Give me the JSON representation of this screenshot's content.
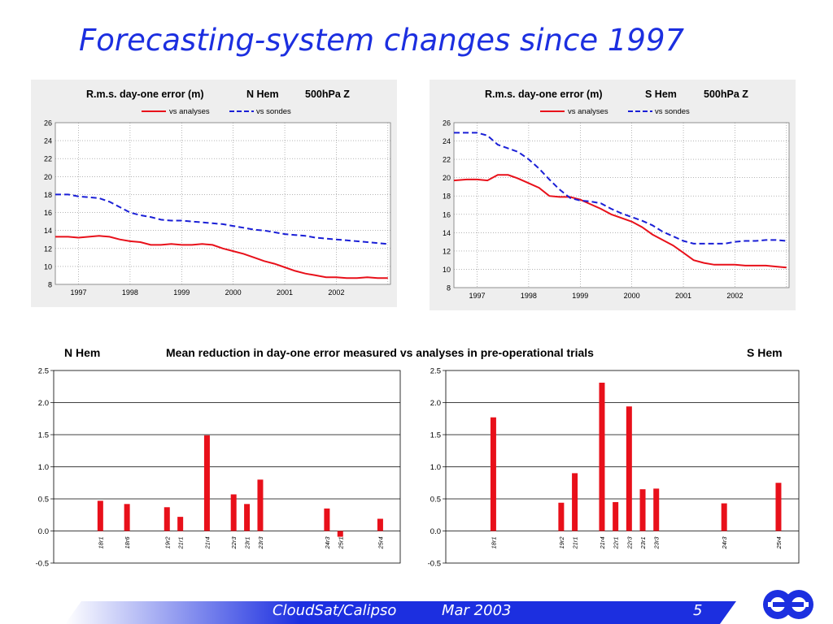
{
  "title": "Forecasting-system changes since 1997",
  "footer": {
    "event": "CloudSat/Calipso",
    "date": "Mar 2003",
    "page": "5"
  },
  "colors": {
    "title": "#1c2fe0",
    "analyses": "#e8101a",
    "sondes": "#1a1fd6",
    "bars": "#e8101a",
    "footer_band": "#1c2fe0"
  },
  "section_title": {
    "left": "N Hem",
    "center": "Mean reduction in day-one error measured vs analyses in pre-operational trials",
    "right": "S  Hem"
  },
  "chart_data": [
    {
      "type": "line",
      "title": "R.m.s. day-one error (m)",
      "hemisphere": "N Hem",
      "level": "500hPa Z",
      "ylim": [
        8,
        26
      ],
      "yticks": [
        8,
        10,
        12,
        14,
        16,
        18,
        20,
        22,
        24,
        26
      ],
      "x_categories": [
        "1997",
        "1998",
        "1999",
        "2000",
        "2001",
        "2002"
      ],
      "grid": true,
      "legend_position": "top",
      "series": [
        {
          "name": "vs analyses",
          "style": "solid",
          "color": "#e8101a",
          "x": [
            1996.55,
            1996.8,
            1997.0,
            1997.2,
            1997.4,
            1997.6,
            1997.8,
            1998.0,
            1998.2,
            1998.4,
            1998.6,
            1998.8,
            1999.0,
            1999.2,
            1999.4,
            1999.6,
            1999.8,
            2000.0,
            2000.2,
            2000.4,
            2000.6,
            2000.8,
            2001.0,
            2001.2,
            2001.4,
            2001.6,
            2001.8,
            2002.0,
            2002.2,
            2002.4,
            2002.6,
            2002.8,
            2003.0
          ],
          "y": [
            13.3,
            13.3,
            13.2,
            13.3,
            13.4,
            13.3,
            13.0,
            12.8,
            12.7,
            12.4,
            12.4,
            12.5,
            12.4,
            12.4,
            12.5,
            12.4,
            12.0,
            11.7,
            11.4,
            11.0,
            10.6,
            10.3,
            9.9,
            9.5,
            9.2,
            9.0,
            8.8,
            8.8,
            8.7,
            8.7,
            8.8,
            8.7,
            8.7
          ]
        },
        {
          "name": "vs sondes",
          "style": "dashed",
          "color": "#1a1fd6",
          "x": [
            1996.55,
            1996.8,
            1997.0,
            1997.2,
            1997.4,
            1997.6,
            1997.8,
            1998.0,
            1998.2,
            1998.4,
            1998.6,
            1998.8,
            1999.0,
            1999.2,
            1999.4,
            1999.6,
            1999.8,
            2000.0,
            2000.2,
            2000.4,
            2000.6,
            2000.8,
            2001.0,
            2001.2,
            2001.4,
            2001.6,
            2001.8,
            2002.0,
            2002.2,
            2002.4,
            2002.6,
            2002.8,
            2003.0
          ],
          "y": [
            18.0,
            18.0,
            17.8,
            17.7,
            17.6,
            17.2,
            16.6,
            16.0,
            15.7,
            15.5,
            15.2,
            15.1,
            15.1,
            15.0,
            14.9,
            14.8,
            14.7,
            14.5,
            14.3,
            14.1,
            14.0,
            13.8,
            13.6,
            13.5,
            13.4,
            13.2,
            13.1,
            13.0,
            12.9,
            12.8,
            12.7,
            12.6,
            12.5
          ]
        }
      ]
    },
    {
      "type": "line",
      "title": "R.m.s. day-one error (m)",
      "hemisphere": "S Hem",
      "level": "500hPa Z",
      "ylim": [
        8,
        26
      ],
      "yticks": [
        8,
        10,
        12,
        14,
        16,
        18,
        20,
        22,
        24,
        26
      ],
      "x_categories": [
        "1997",
        "1998",
        "1999",
        "2000",
        "2001",
        "2002"
      ],
      "grid": true,
      "legend_position": "top",
      "series": [
        {
          "name": "vs analyses",
          "style": "solid",
          "color": "#e8101a",
          "x": [
            1996.55,
            1996.8,
            1997.0,
            1997.2,
            1997.4,
            1997.6,
            1997.8,
            1998.0,
            1998.2,
            1998.4,
            1998.6,
            1998.8,
            1999.0,
            1999.2,
            1999.4,
            1999.6,
            1999.8,
            2000.0,
            2000.2,
            2000.4,
            2000.6,
            2000.8,
            2001.0,
            2001.2,
            2001.4,
            2001.6,
            2001.8,
            2002.0,
            2002.2,
            2002.4,
            2002.6,
            2002.8,
            2003.0
          ],
          "y": [
            19.7,
            19.8,
            19.8,
            19.7,
            20.3,
            20.3,
            19.9,
            19.4,
            18.9,
            18.0,
            17.9,
            17.9,
            17.6,
            17.1,
            16.6,
            16.0,
            15.6,
            15.2,
            14.6,
            13.8,
            13.2,
            12.6,
            11.8,
            11.0,
            10.7,
            10.5,
            10.5,
            10.5,
            10.4,
            10.4,
            10.4,
            10.3,
            10.2
          ]
        },
        {
          "name": "vs sondes",
          "style": "dashed",
          "color": "#1a1fd6",
          "x": [
            1996.55,
            1996.8,
            1997.0,
            1997.2,
            1997.4,
            1997.6,
            1997.8,
            1998.0,
            1998.2,
            1998.4,
            1998.6,
            1998.8,
            1999.0,
            1999.2,
            1999.4,
            1999.6,
            1999.8,
            2000.0,
            2000.2,
            2000.4,
            2000.6,
            2000.8,
            2001.0,
            2001.2,
            2001.4,
            2001.6,
            2001.8,
            2002.0,
            2002.2,
            2002.4,
            2002.6,
            2002.8,
            2003.0
          ],
          "y": [
            24.9,
            24.9,
            24.9,
            24.6,
            23.6,
            23.2,
            22.8,
            22.0,
            21.0,
            19.8,
            18.7,
            17.8,
            17.5,
            17.4,
            17.2,
            16.6,
            16.1,
            15.7,
            15.3,
            14.8,
            14.1,
            13.6,
            13.1,
            12.8,
            12.8,
            12.8,
            12.8,
            13.0,
            13.1,
            13.1,
            13.2,
            13.2,
            13.1
          ]
        }
      ]
    },
    {
      "type": "bar",
      "hemisphere": "N Hem",
      "ylim": [
        -0.5,
        2.5
      ],
      "yticks": [
        "-0.5",
        "0.0",
        "0.5",
        "1.0",
        "1.5",
        "2.0",
        "2.5"
      ],
      "slots": 26,
      "categories": [
        "18r1",
        "18r6",
        "19r2",
        "21r1",
        "21r4",
        "22r3",
        "23r1",
        "23r3",
        "24r3",
        "25r1",
        "25r4"
      ],
      "category_slots": [
        3,
        5,
        8,
        9,
        11,
        13,
        14,
        15,
        20,
        21,
        24
      ],
      "values": [
        0.47,
        0.42,
        0.37,
        0.22,
        1.49,
        0.57,
        0.42,
        0.8,
        0.35,
        -0.09,
        0.19
      ],
      "grid": true
    },
    {
      "type": "bar",
      "hemisphere": "S Hem",
      "ylim": [
        -0.5,
        2.5
      ],
      "yticks": [
        "-0.5",
        "0.0",
        "0.5",
        "1.0",
        "1.5",
        "2.0",
        "2.5"
      ],
      "slots": 26,
      "categories": [
        "18r1",
        "19r2",
        "21r1",
        "21r4",
        "22r1",
        "22r3",
        "23r1",
        "23r3",
        "24r3",
        "25r4"
      ],
      "category_slots": [
        3,
        8,
        9,
        11,
        12,
        13,
        14,
        15,
        20,
        24
      ],
      "values": [
        1.77,
        0.44,
        0.9,
        2.31,
        0.45,
        1.94,
        0.65,
        0.66,
        0.43,
        0.75
      ],
      "grid": true
    }
  ]
}
